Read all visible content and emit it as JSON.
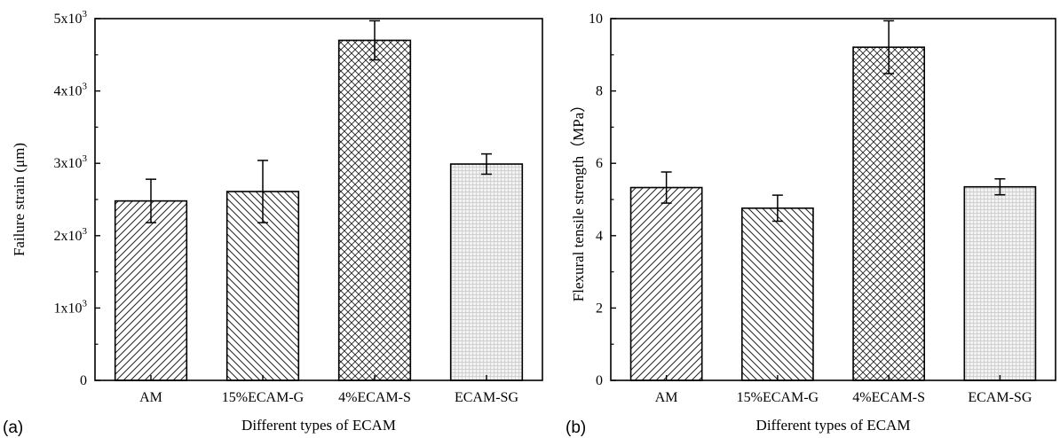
{
  "figure": {
    "panels": [
      {
        "id": "a",
        "panel_label": "(a)",
        "xlabel": "Different types of ECAM",
        "ylabel": "Failure strain (μm)",
        "y_ticks": [
          {
            "value": 0,
            "base": "0",
            "exp": ""
          },
          {
            "value": 1000,
            "base": "1x10",
            "exp": "3"
          },
          {
            "value": 2000,
            "base": "2x10",
            "exp": "3"
          },
          {
            "value": 3000,
            "base": "3x10",
            "exp": "3"
          },
          {
            "value": 4000,
            "base": "4x10",
            "exp": "3"
          },
          {
            "value": 5000,
            "base": "5x10",
            "exp": "3"
          }
        ]
      },
      {
        "id": "b",
        "panel_label": "(b)",
        "xlabel": "Different types of ECAM",
        "ylabel": "Flexural tensile strength（MPa）",
        "y_ticks": [
          {
            "value": 0,
            "base": "0",
            "exp": ""
          },
          {
            "value": 2,
            "base": "2",
            "exp": ""
          },
          {
            "value": 4,
            "base": "4",
            "exp": ""
          },
          {
            "value": 6,
            "base": "6",
            "exp": ""
          },
          {
            "value": 8,
            "base": "8",
            "exp": ""
          },
          {
            "value": 10,
            "base": "10",
            "exp": ""
          }
        ]
      }
    ],
    "patterns": [
      "diag-up",
      "diag-down",
      "crosshatch",
      "fine-grid"
    ]
  },
  "chart_data": [
    {
      "type": "bar",
      "categories": [
        "AM",
        "15%ECAM-G",
        "4%ECAM-S",
        "ECAM-SG"
      ],
      "values": [
        2480,
        2610,
        4700,
        2990
      ],
      "errors": [
        300,
        430,
        270,
        140
      ],
      "title": "",
      "xlabel": "Different types of ECAM",
      "ylabel": "Failure strain (μm)",
      "ylim": [
        0,
        5000
      ],
      "grid": false,
      "legend": "none"
    },
    {
      "type": "bar",
      "categories": [
        "AM",
        "15%ECAM-G",
        "4%ECAM-S",
        "ECAM-SG"
      ],
      "values": [
        5.33,
        4.76,
        9.21,
        5.35
      ],
      "errors": [
        0.43,
        0.36,
        0.73,
        0.22
      ],
      "title": "",
      "xlabel": "Different types of ECAM",
      "ylabel": "Flexural tensile strength（MPa）",
      "ylim": [
        0,
        10
      ],
      "grid": false,
      "legend": "none"
    }
  ]
}
